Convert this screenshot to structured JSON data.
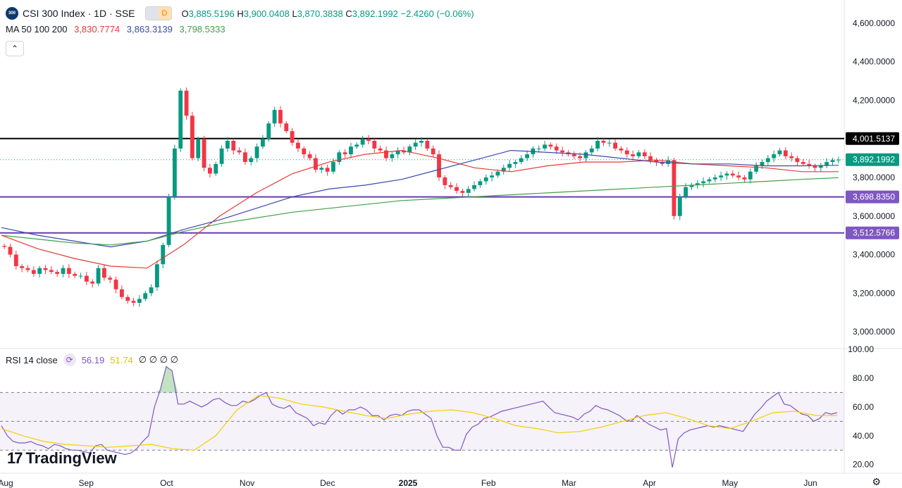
{
  "header": {
    "logo_text": "300",
    "symbol": "CSI 300 Index · 1D · SSE",
    "badge_e": "",
    "badge_d": "D",
    "open_label": "O",
    "open": "3,885.5196",
    "high_label": "H",
    "high": "3,900.0408",
    "low_label": "L",
    "low": "3,870.3838",
    "close_label": "C",
    "close": "3,892.1992",
    "change": "−2.4260 (−0.06%)"
  },
  "ma_legend": {
    "label": "MA 50 100 200",
    "ma50": "3,830.7774",
    "ma100": "3,863.3139",
    "ma200": "3,798.5333"
  },
  "rsi_legend": {
    "label": "RSI 14 close",
    "rsi": "56.19",
    "rsi_ma": "51.74",
    "extras": "∅ ∅ ∅ ∅"
  },
  "branding": {
    "name": "TradingView",
    "mark": "17"
  },
  "colors": {
    "up": "#089981",
    "down": "#f23645",
    "ma50": "#e53935",
    "ma100": "#3949ab",
    "ma200": "#43a047",
    "rsi": "#7e57c2",
    "rsi_ma": "#f5d000",
    "hline_black": "#000000",
    "hline_purple": "#673ab7"
  },
  "chart_data": [
    {
      "type": "candlestick",
      "title": "CSI 300 Index · 1D · SSE",
      "x_ticks": [
        "Aug",
        "Sep",
        "Oct",
        "Nov",
        "Dec",
        "2025",
        "Feb",
        "Mar",
        "Apr",
        "May",
        "Jun"
      ],
      "y_ticks": [
        "4,600.0000",
        "4,400.0000",
        "4,200.0000",
        "3,800.0000",
        "3,600.0000",
        "3,400.0000",
        "3,200.0000",
        "3,000.0000"
      ],
      "ylim": [
        2920,
        4720
      ],
      "horizontal_lines": [
        {
          "value": 4001.5137,
          "label": "4,001.5137",
          "color": "#000000"
        },
        {
          "value": 3698.835,
          "label": "3,698.8350",
          "color": "#673ab7"
        },
        {
          "value": 3512.5766,
          "label": "3,512.5766",
          "color": "#673ab7"
        }
      ],
      "last_price": {
        "value": 3892.1992,
        "label": "3,892.1992"
      },
      "close_series": [
        3440,
        3400,
        3340,
        3330,
        3320,
        3300,
        3330,
        3320,
        3310,
        3300,
        3330,
        3300,
        3290,
        3290,
        3260,
        3250,
        3330,
        3280,
        3270,
        3220,
        3180,
        3160,
        3150,
        3170,
        3200,
        3230,
        3350,
        3450,
        3700,
        3950,
        4250,
        4120,
        3900,
        4000,
        3850,
        3820,
        3870,
        3950,
        3990,
        3940,
        3930,
        3880,
        3900,
        3960,
        4000,
        4080,
        4150,
        4080,
        4040,
        3980,
        3950,
        3920,
        3900,
        3840,
        3850,
        3830,
        3880,
        3930,
        3920,
        3960,
        3970,
        4000,
        3990,
        3950,
        3940,
        3900,
        3920,
        3940,
        3930,
        3960,
        3980,
        3990,
        3950,
        3920,
        3800,
        3760,
        3750,
        3730,
        3720,
        3740,
        3760,
        3780,
        3800,
        3810,
        3830,
        3850,
        3870,
        3880,
        3900,
        3920,
        3950,
        3950,
        3970,
        3960,
        3940,
        3930,
        3920,
        3910,
        3900,
        3930,
        3950,
        3990,
        3980,
        3980,
        3950,
        3940,
        3920,
        3910,
        3930,
        3910,
        3890,
        3880,
        3870,
        3890,
        3600,
        3700,
        3750,
        3760,
        3770,
        3780,
        3790,
        3800,
        3810,
        3820,
        3810,
        3800,
        3790,
        3830,
        3860,
        3880,
        3900,
        3920,
        3940,
        3910,
        3900,
        3880,
        3870,
        3860,
        3850,
        3860,
        3880,
        3890,
        3892
      ],
      "series": [
        {
          "name": "MA 50",
          "values": [
            3500,
            3430,
            3380,
            3340,
            3330,
            3450,
            3600,
            3720,
            3820,
            3880,
            3920,
            3940,
            3900,
            3850,
            3830,
            3860,
            3880,
            3880,
            3890,
            3870,
            3860,
            3850,
            3830,
            3830
          ]
        },
        {
          "name": "MA 100",
          "values": [
            3540,
            3500,
            3470,
            3440,
            3470,
            3530,
            3580,
            3640,
            3700,
            3740,
            3760,
            3790,
            3840,
            3890,
            3940,
            3930,
            3920,
            3900,
            3880,
            3870,
            3870,
            3860,
            3860,
            3863
          ]
        },
        {
          "name": "MA 200",
          "values": [
            3500,
            3480,
            3460,
            3450,
            3470,
            3520,
            3560,
            3590,
            3620,
            3640,
            3660,
            3680,
            3690,
            3700,
            3710,
            3720,
            3730,
            3740,
            3750,
            3760,
            3770,
            3780,
            3790,
            3799
          ]
        }
      ]
    },
    {
      "type": "line",
      "title": "RSI 14 close",
      "y_ticks": [
        "100.00",
        "80.00",
        "60.00",
        "40.00",
        "20.00"
      ],
      "ylim": [
        14,
        100
      ],
      "bands": [
        70,
        50,
        30
      ],
      "series": [
        {
          "name": "RSI",
          "values": [
            47,
            40,
            36,
            35,
            35,
            36,
            34,
            33,
            31,
            34,
            33,
            31,
            30,
            30,
            29,
            28,
            33,
            34,
            30,
            29,
            28,
            27,
            28,
            31,
            36,
            40,
            60,
            72,
            88,
            85,
            62,
            62,
            64,
            62,
            60,
            62,
            65,
            66,
            63,
            61,
            61,
            64,
            63,
            65,
            68,
            70,
            62,
            60,
            59,
            61,
            56,
            54,
            52,
            47,
            49,
            48,
            54,
            58,
            55,
            58,
            58,
            60,
            58,
            54,
            54,
            51,
            54,
            55,
            54,
            57,
            58,
            58,
            55,
            52,
            40,
            32,
            32,
            30,
            30,
            41,
            46,
            48,
            52,
            53,
            55,
            57,
            58,
            59,
            60,
            61,
            62,
            63,
            64,
            60,
            56,
            55,
            54,
            53,
            51,
            55,
            57,
            61,
            59,
            58,
            56,
            54,
            51,
            50,
            54,
            51,
            48,
            46,
            44,
            45,
            18,
            38,
            42,
            44,
            45,
            46,
            47,
            46,
            47,
            46,
            45,
            44,
            43,
            49,
            55,
            59,
            64,
            67,
            70,
            62,
            61,
            58,
            55,
            54,
            50,
            52,
            56,
            55,
            56
          ]
        },
        {
          "name": "RSI MA",
          "values": [
            45,
            40,
            36,
            34,
            33,
            32,
            33,
            34,
            31,
            30,
            40,
            58,
            68,
            66,
            62,
            60,
            57,
            54,
            52,
            55,
            57,
            58,
            56,
            52,
            47,
            45,
            42,
            43,
            46,
            50,
            54,
            56,
            52,
            47,
            45,
            50,
            56,
            57,
            54,
            54
          ]
        }
      ]
    }
  ]
}
